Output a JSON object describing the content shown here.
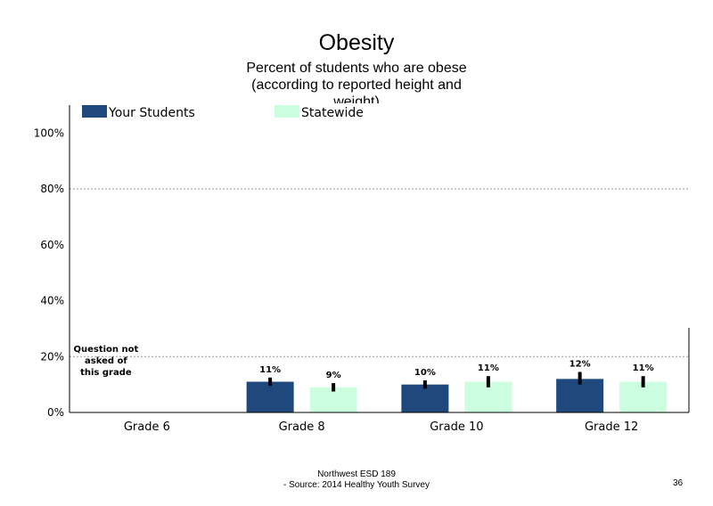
{
  "chart_data": {
    "type": "bar",
    "title": "Obesity",
    "subtitle_lines": [
      "Percent of students who are obese",
      "(according to reported height and",
      "weight)"
    ],
    "categories": [
      "Grade 6",
      "Grade 8",
      "Grade 10",
      "Grade 12"
    ],
    "series": [
      {
        "name": "Your Students",
        "color": "#1f497d",
        "values": [
          null,
          11,
          10,
          12
        ],
        "labels": [
          "",
          "11%",
          "10%",
          "12%"
        ],
        "ci_low": [
          null,
          9.5,
          8.5,
          10
        ],
        "ci_high": [
          null,
          12.5,
          11.5,
          14.5
        ]
      },
      {
        "name": "Statewide",
        "color": "#ccffe0",
        "values": [
          null,
          9,
          11,
          11
        ],
        "labels": [
          "",
          "9%",
          "11%",
          "11%"
        ],
        "ci_low": [
          null,
          7.5,
          9,
          9
        ],
        "ci_high": [
          null,
          10.5,
          13,
          13
        ]
      }
    ],
    "yticks": [
      "0%",
      "20%",
      "40%",
      "60%",
      "80%",
      "100%"
    ],
    "ylim": [
      0,
      110
    ],
    "gridlines": [
      20,
      80
    ],
    "legend_position": "top-left",
    "annotation": {
      "category": "Grade 6",
      "lines": [
        "Question not",
        "asked of",
        "this grade"
      ]
    }
  },
  "footer": {
    "line1": "Northwest ESD  189",
    "line2": "- Source: 2014 Healthy  Youth Survey"
  },
  "page_number": "36"
}
